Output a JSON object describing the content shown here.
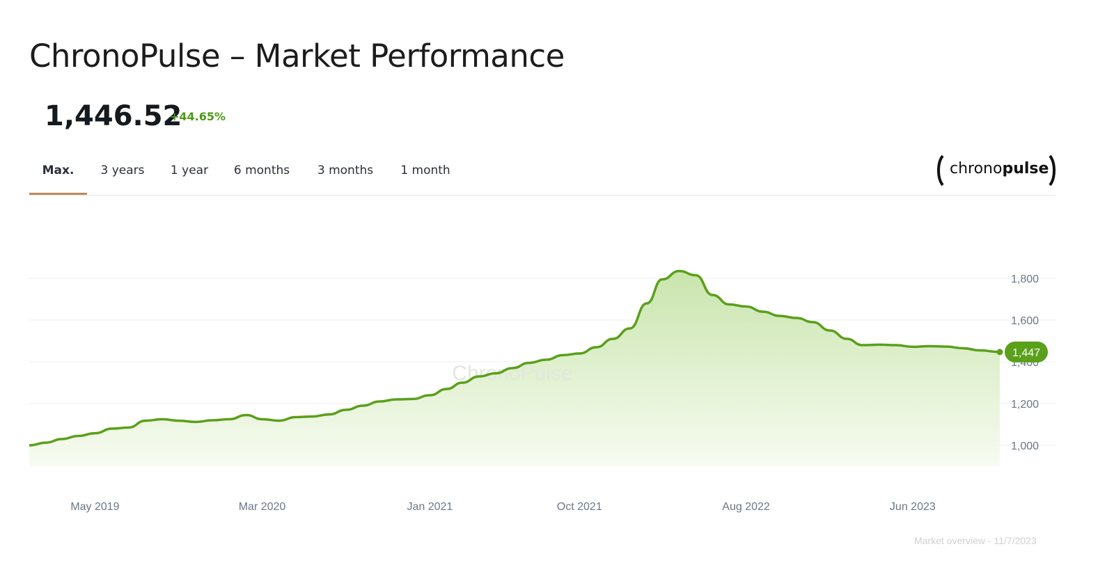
{
  "header": {
    "title": "ChronoPulse – Market Performance",
    "price": "1,446.52",
    "change": "+44.65%"
  },
  "tabs": [
    {
      "label": "Max.",
      "active": true
    },
    {
      "label": "3 years",
      "active": false
    },
    {
      "label": "1 year",
      "active": false
    },
    {
      "label": "6 months",
      "active": false
    },
    {
      "label": "3 months",
      "active": false
    },
    {
      "label": "1 month",
      "active": false
    }
  ],
  "logo": {
    "left": "chrono",
    "right": "pulse"
  },
  "footer": {
    "text": "Market overview - 11/7/2023"
  },
  "colors": {
    "accent": "#5aa01a",
    "tab_underline": "#c08a5a",
    "fill": "#d4ebbf"
  },
  "chart_data": {
    "type": "area",
    "watermark": "ChronoPulse",
    "x_tick_labels": [
      {
        "date": "2019-05-01",
        "label": "May 2019"
      },
      {
        "date": "2020-03-01",
        "label": "Mar 2020"
      },
      {
        "date": "2021-01-01",
        "label": "Jan 2021"
      },
      {
        "date": "2021-10-01",
        "label": "Oct 2021"
      },
      {
        "date": "2022-08-01",
        "label": "Aug 2022"
      },
      {
        "date": "2023-06-01",
        "label": "Jun 2023"
      }
    ],
    "y_ticks": [
      1000,
      1200,
      1400,
      1600,
      1800
    ],
    "y_tick_labels": [
      "1,000",
      "1,200",
      "1,400",
      "1,600",
      "1,800"
    ],
    "ylim": [
      900,
      1900
    ],
    "xlim": [
      "2019-01-01",
      "2023-11-07"
    ],
    "last_value": 1447,
    "last_label": "1,447",
    "grid": true,
    "series": [
      {
        "x": [
          "2019-01-01",
          "2019-02-01",
          "2019-03-01",
          "2019-04-01",
          "2019-05-01",
          "2019-06-01",
          "2019-07-01",
          "2019-08-01",
          "2019-09-01",
          "2019-10-01",
          "2019-11-01",
          "2019-12-01",
          "2020-01-01",
          "2020-02-01",
          "2020-03-01",
          "2020-04-01",
          "2020-05-01",
          "2020-06-01",
          "2020-07-01",
          "2020-08-01",
          "2020-09-01",
          "2020-10-01",
          "2020-11-01",
          "2020-12-01",
          "2021-01-01",
          "2021-02-01",
          "2021-03-01",
          "2021-04-01",
          "2021-05-01",
          "2021-06-01",
          "2021-07-01",
          "2021-08-01",
          "2021-09-01",
          "2021-10-01",
          "2021-11-01",
          "2021-12-01",
          "2022-01-01",
          "2022-02-01",
          "2022-03-01",
          "2022-04-01",
          "2022-05-01",
          "2022-06-01",
          "2022-07-01",
          "2022-08-01",
          "2022-09-01",
          "2022-10-01",
          "2022-11-01",
          "2022-12-01",
          "2023-01-01",
          "2023-02-01",
          "2023-03-01",
          "2023-04-01",
          "2023-05-01",
          "2023-06-01",
          "2023-07-01",
          "2023-08-01",
          "2023-09-01",
          "2023-10-01",
          "2023-11-07"
        ],
        "values": [
          1000,
          1013,
          1030,
          1045,
          1058,
          1080,
          1085,
          1118,
          1125,
          1118,
          1112,
          1120,
          1125,
          1145,
          1125,
          1118,
          1135,
          1138,
          1148,
          1170,
          1190,
          1210,
          1220,
          1222,
          1240,
          1270,
          1300,
          1330,
          1345,
          1370,
          1395,
          1410,
          1432,
          1440,
          1470,
          1510,
          1560,
          1680,
          1795,
          1835,
          1815,
          1720,
          1675,
          1665,
          1640,
          1620,
          1610,
          1590,
          1550,
          1510,
          1480,
          1482,
          1480,
          1472,
          1475,
          1473,
          1465,
          1455,
          1447
        ]
      }
    ]
  }
}
